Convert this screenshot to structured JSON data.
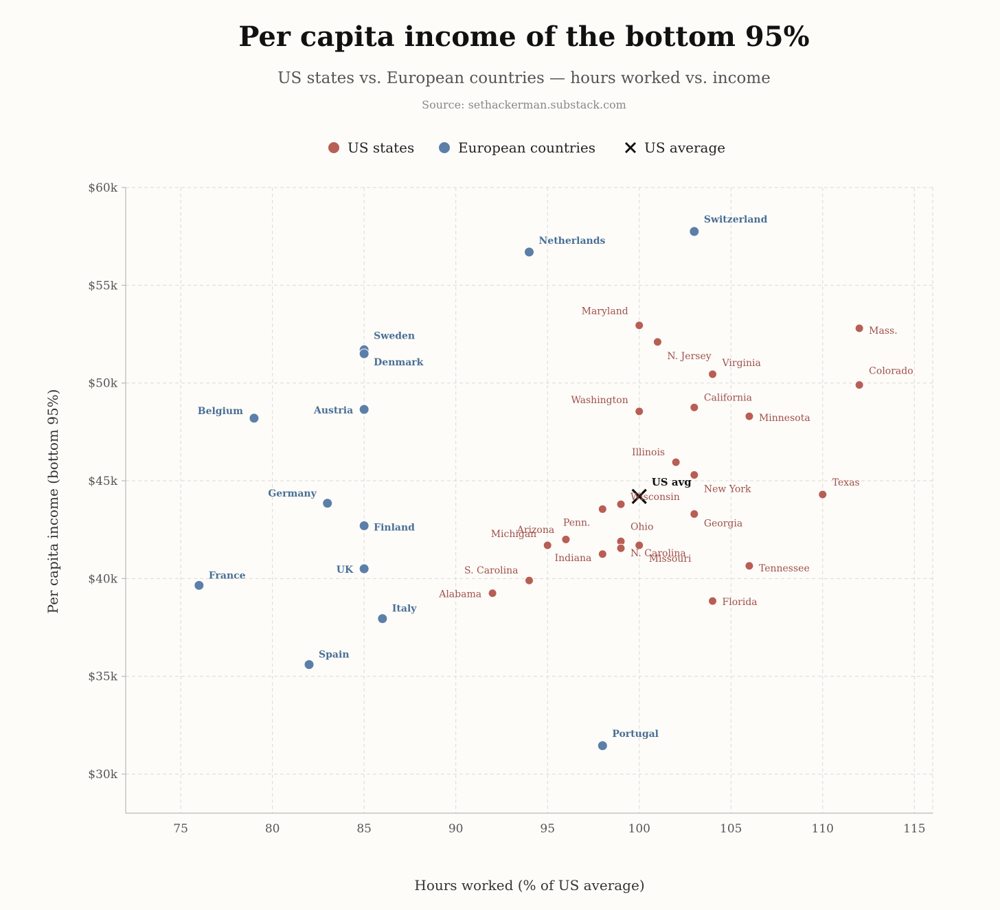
{
  "chart_data": {
    "type": "scatter",
    "title": "Per capita income of the bottom 95%",
    "subtitle": "US states vs. European countries — hours worked vs. income",
    "source": "Source: sethackerman.substack.com",
    "xlabel": "Hours worked (% of US average)",
    "ylabel": "Per capita income (bottom 95%)",
    "xlim": [
      72,
      116
    ],
    "ylim": [
      28000,
      60000
    ],
    "xticks": [
      75,
      80,
      85,
      90,
      95,
      100,
      105,
      110,
      115
    ],
    "xtick_labels": [
      "75",
      "80",
      "85",
      "90",
      "95",
      "100",
      "105",
      "110",
      "115"
    ],
    "yticks": [
      30000,
      35000,
      40000,
      45000,
      50000,
      55000,
      60000
    ],
    "ytick_labels": [
      "$30k",
      "$35k",
      "$40k",
      "$45k",
      "$50k",
      "$55k",
      "$60k"
    ],
    "grid": true,
    "legend_position": "top-center",
    "legend": [
      {
        "name": "US states",
        "marker": "circle",
        "color": "#b85e55"
      },
      {
        "name": "European countries",
        "marker": "circle",
        "color": "#5b7fa8"
      },
      {
        "name": "US average",
        "marker": "x",
        "color": "#111111"
      }
    ],
    "series": [
      {
        "name": "US states",
        "color": "#b85e55",
        "points": [
          {
            "label": "Mass.",
            "x": 112,
            "y": 52800,
            "anchor": "start"
          },
          {
            "label": "Maryland",
            "x": 100,
            "y": 52950,
            "anchor": "end"
          },
          {
            "label": "N. Jersey",
            "x": 101,
            "y": 52100,
            "anchor": "start"
          },
          {
            "label": "Virginia",
            "x": 104,
            "y": 50450,
            "anchor": "start"
          },
          {
            "label": "Colorado",
            "x": 112,
            "y": 49900,
            "anchor": "start"
          },
          {
            "label": "California",
            "x": 103,
            "y": 48750,
            "anchor": "start"
          },
          {
            "label": "Washington",
            "x": 100,
            "y": 48550,
            "anchor": "end"
          },
          {
            "label": "Minnesota",
            "x": 106,
            "y": 48300,
            "anchor": "start"
          },
          {
            "label": "Illinois",
            "x": 102,
            "y": 45950,
            "anchor": "end"
          },
          {
            "label": "New York",
            "x": 103,
            "y": 45300,
            "anchor": "start"
          },
          {
            "label": "Texas",
            "x": 110,
            "y": 44300,
            "anchor": "start"
          },
          {
            "label": "Wisconsin",
            "x": 99,
            "y": 43800,
            "anchor": "start"
          },
          {
            "label": "",
            "x": 98,
            "y": 43550,
            "anchor": "start"
          },
          {
            "label": "Georgia",
            "x": 103,
            "y": 43300,
            "anchor": "start"
          },
          {
            "label": "Penn.",
            "x": 96,
            "y": 42000,
            "anchor": "start"
          },
          {
            "label": "Arizona",
            "x": 95,
            "y": 41700,
            "anchor": "end"
          },
          {
            "label": "Michigan",
            "x": 95,
            "y": 41700,
            "anchor": "end"
          },
          {
            "label": "Ohio",
            "x": 99,
            "y": 41900,
            "anchor": "start"
          },
          {
            "label": "Missouri",
            "x": 100,
            "y": 41700,
            "anchor": "start"
          },
          {
            "label": "N. Carolina",
            "x": 99,
            "y": 41550,
            "anchor": "start"
          },
          {
            "label": "Indiana",
            "x": 98,
            "y": 41250,
            "anchor": "end"
          },
          {
            "label": "Tennessee",
            "x": 106,
            "y": 40650,
            "anchor": "start"
          },
          {
            "label": "S. Carolina",
            "x": 94,
            "y": 39900,
            "anchor": "end"
          },
          {
            "label": "Alabama",
            "x": 92,
            "y": 39250,
            "anchor": "end"
          },
          {
            "label": "Florida",
            "x": 104,
            "y": 38850,
            "anchor": "start"
          }
        ]
      },
      {
        "name": "European countries",
        "color": "#5b7fa8",
        "points": [
          {
            "label": "Switzerland",
            "x": 103,
            "y": 57750,
            "anchor": "start"
          },
          {
            "label": "Netherlands",
            "x": 94,
            "y": 56700,
            "anchor": "start"
          },
          {
            "label": "Sweden",
            "x": 85,
            "y": 51700,
            "anchor": "start"
          },
          {
            "label": "Denmark",
            "x": 85,
            "y": 51500,
            "anchor": "start"
          },
          {
            "label": "Austria",
            "x": 85,
            "y": 48650,
            "anchor": "end"
          },
          {
            "label": "Belgium",
            "x": 79,
            "y": 48200,
            "anchor": "end"
          },
          {
            "label": "Germany",
            "x": 83,
            "y": 43850,
            "anchor": "end"
          },
          {
            "label": "Finland",
            "x": 85,
            "y": 42700,
            "anchor": "start"
          },
          {
            "label": "UK",
            "x": 85,
            "y": 40500,
            "anchor": "end"
          },
          {
            "label": "France",
            "x": 76,
            "y": 39650,
            "anchor": "start"
          },
          {
            "label": "Italy",
            "x": 86,
            "y": 37950,
            "anchor": "start"
          },
          {
            "label": "Spain",
            "x": 82,
            "y": 35600,
            "anchor": "start"
          },
          {
            "label": "Portugal",
            "x": 98,
            "y": 31450,
            "anchor": "start"
          }
        ]
      },
      {
        "name": "US average",
        "color": "#111111",
        "points": [
          {
            "label": "US avg",
            "x": 100,
            "y": 44200,
            "anchor": "start"
          }
        ]
      }
    ]
  }
}
